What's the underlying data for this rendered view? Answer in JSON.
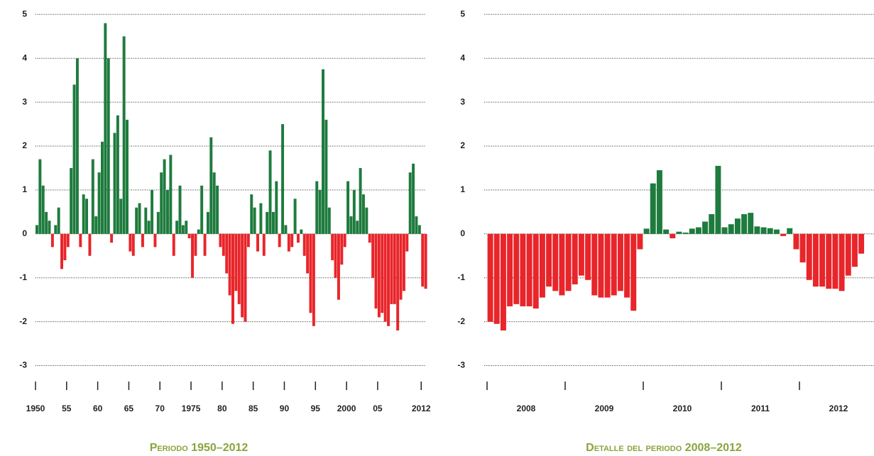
{
  "chart_data": [
    {
      "type": "bar",
      "caption": "Periodo 1950–2012",
      "positive_color": "#1e7b3e",
      "negative_color": "#e8252a",
      "x": [
        1950.0,
        1950.5,
        1951.0,
        1951.5,
        1952.0,
        1952.5,
        1953.0,
        1953.5,
        1954.0,
        1954.5,
        1955.0,
        1955.5,
        1956.0,
        1956.5,
        1957.0,
        1957.5,
        1958.0,
        1958.5,
        1959.0,
        1959.5,
        1960.0,
        1960.5,
        1961.0,
        1961.5,
        1962.0,
        1962.5,
        1963.0,
        1963.5,
        1964.0,
        1964.5,
        1965.0,
        1965.5,
        1966.0,
        1966.5,
        1967.0,
        1967.5,
        1968.0,
        1968.5,
        1969.0,
        1969.5,
        1970.0,
        1970.5,
        1971.0,
        1971.5,
        1972.0,
        1972.5,
        1973.0,
        1973.5,
        1974.0,
        1974.5,
        1975.0,
        1975.5,
        1976.0,
        1976.5,
        1977.0,
        1977.5,
        1978.0,
        1978.5,
        1979.0,
        1979.5,
        1980.0,
        1980.5,
        1981.0,
        1981.5,
        1982.0,
        1982.5,
        1983.0,
        1983.5,
        1984.0,
        1984.5,
        1985.0,
        1985.5,
        1986.0,
        1986.5,
        1987.0,
        1987.5,
        1988.0,
        1988.5,
        1989.0,
        1989.5,
        1990.0,
        1990.5,
        1991.0,
        1991.5,
        1992.0,
        1992.5,
        1993.0,
        1993.5,
        1994.0,
        1994.5,
        1995.0,
        1995.5,
        1996.0,
        1996.5,
        1997.0,
        1997.5,
        1998.0,
        1998.5,
        1999.0,
        1999.5,
        2000.0,
        2000.5,
        2001.0,
        2001.5,
        2002.0,
        2002.5,
        2003.0,
        2003.5,
        2004.0,
        2004.5,
        2005.0,
        2005.5,
        2006.0,
        2006.5,
        2007.0,
        2007.5,
        2008.0,
        2008.5,
        2009.0,
        2009.5,
        2010.0,
        2010.5,
        2011.0,
        2011.5,
        2012.0,
        2012.5
      ],
      "values": [
        0.2,
        1.7,
        1.1,
        0.5,
        0.3,
        -0.3,
        0.2,
        0.6,
        -0.8,
        -0.6,
        -0.3,
        1.5,
        3.4,
        4.0,
        -0.3,
        0.9,
        0.8,
        -0.5,
        1.7,
        0.4,
        1.4,
        2.1,
        4.8,
        4.0,
        -0.2,
        2.3,
        2.7,
        0.8,
        4.5,
        2.6,
        -0.4,
        -0.5,
        0.6,
        0.7,
        -0.3,
        0.6,
        0.3,
        1.0,
        -0.3,
        0.5,
        1.4,
        1.7,
        1.0,
        1.8,
        -0.5,
        0.3,
        1.1,
        0.2,
        0.3,
        -0.1,
        -1.0,
        -0.5,
        0.1,
        1.1,
        -0.5,
        0.5,
        2.2,
        1.4,
        1.1,
        -0.3,
        -0.5,
        -0.9,
        -1.4,
        -2.05,
        -1.3,
        -1.6,
        -1.9,
        -2.0,
        -0.3,
        0.9,
        0.6,
        -0.4,
        0.7,
        -0.5,
        0.5,
        1.9,
        0.5,
        1.2,
        -0.3,
        2.5,
        0.2,
        -0.4,
        -0.3,
        0.8,
        -0.2,
        0.1,
        -0.5,
        -0.9,
        -1.8,
        -2.1,
        1.2,
        1.0,
        3.75,
        2.6,
        0.6,
        -0.6,
        -1.0,
        -1.5,
        -0.7,
        -0.3,
        1.2,
        0.4,
        1.0,
        0.3,
        1.5,
        0.9,
        0.6,
        -0.2,
        -1.0,
        -1.7,
        -1.9,
        -1.8,
        -2.0,
        -2.1,
        -1.6,
        -1.6,
        -2.2,
        -1.5,
        -1.3,
        -0.4,
        1.4,
        1.6,
        0.4,
        0.2,
        -1.2,
        -1.25
      ],
      "xlim": [
        1950,
        2013
      ],
      "xticks": [
        1950,
        {
          "value": 1955,
          "label": "55"
        },
        {
          "value": 1960,
          "label": "60"
        },
        {
          "value": 1965,
          "label": "65"
        },
        {
          "value": 1970,
          "label": "70"
        },
        1975,
        {
          "value": 1980,
          "label": "80"
        },
        {
          "value": 1985,
          "label": "85"
        },
        {
          "value": 1990,
          "label": "90"
        },
        {
          "value": 1995,
          "label": "95"
        },
        2000,
        {
          "value": 2005,
          "label": "05"
        },
        2012
      ],
      "ylim": [
        -3.25,
        5.15
      ],
      "yticks": [
        -3,
        -2,
        -1,
        0,
        1,
        2,
        3,
        4,
        5
      ],
      "grid": true
    },
    {
      "type": "bar",
      "caption": "Detalle del periodo 2008–2012",
      "positive_color": "#1e7b3e",
      "negative_color": "#e8252a",
      "year_labels": [
        "2008",
        "2009",
        "2010",
        "2011",
        "2012"
      ],
      "values": [
        -2.0,
        -2.05,
        -2.2,
        -1.65,
        -1.6,
        -1.65,
        -1.65,
        -1.7,
        -1.45,
        -1.2,
        -1.3,
        -1.4,
        -1.3,
        -1.15,
        -0.95,
        -1.05,
        -1.4,
        -1.45,
        -1.45,
        -1.4,
        -1.3,
        -1.45,
        -1.75,
        -0.35,
        0.12,
        1.15,
        1.45,
        0.1,
        -0.1,
        0.05,
        0.03,
        0.12,
        0.15,
        0.28,
        0.45,
        1.55,
        0.15,
        0.22,
        0.35,
        0.45,
        0.48,
        0.17,
        0.15,
        0.13,
        0.1,
        -0.05,
        0.13,
        -0.35,
        -0.65,
        -1.05,
        -1.2,
        -1.2,
        -1.25,
        -1.25,
        -1.3,
        -0.95,
        -0.75,
        -0.45
      ],
      "ylim": [
        -3.25,
        5.15
      ],
      "yticks": [
        -3,
        -2,
        -1,
        0,
        1,
        2,
        3,
        4,
        5
      ],
      "grid": true
    }
  ]
}
